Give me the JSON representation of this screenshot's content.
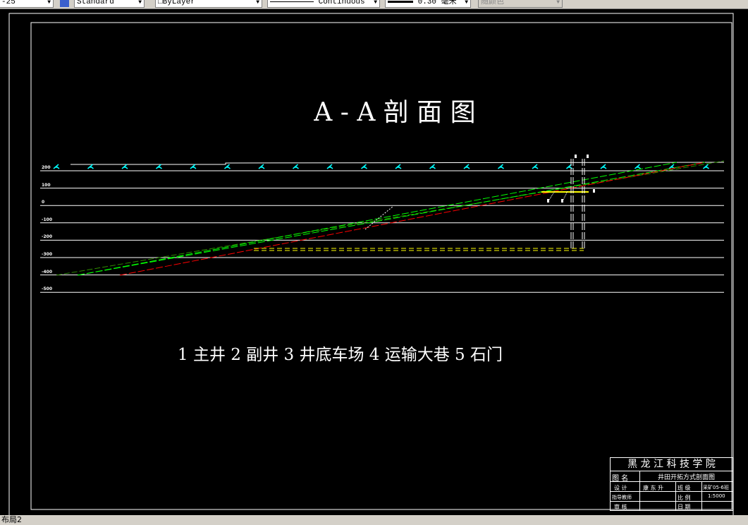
{
  "toolbar": {
    "scale": "-25",
    "text_style": "Standard",
    "layer": "ByLayer",
    "linetype": "Continuous",
    "lineweight": "0.30 毫米",
    "color": "随颜色"
  },
  "drawing": {
    "title": "A - A   剖 面 图",
    "legend": "1 主井   2 副井   3 井底车场   4 运输大巷   5 石门",
    "elevations": [
      "200",
      "100",
      "0",
      "-100",
      "-200",
      "-300",
      "-400",
      "-500"
    ],
    "colors": {
      "seam": "#00ff00",
      "seam_dark": "#2e8b00",
      "floor": "#ff0000",
      "roadway": "#ffff00",
      "surface_symbol": "#00ffff"
    }
  },
  "title_block": {
    "school": "黑 龙 江 科 技 学 院",
    "drawing_name_label": "图   名",
    "drawing_name": "井田开拓方式剖面图",
    "design_label": "设  计",
    "designer": "康 东 升",
    "class_label": "班  级",
    "class": "采矿05-6班",
    "advisor_label": "指导教师",
    "advisor": "",
    "scale_label": "比  例",
    "scale": "1:5000",
    "review_label": "审  核",
    "review": "",
    "date_label": "日  期",
    "date": ""
  },
  "status": {
    "tab": "布局2"
  }
}
